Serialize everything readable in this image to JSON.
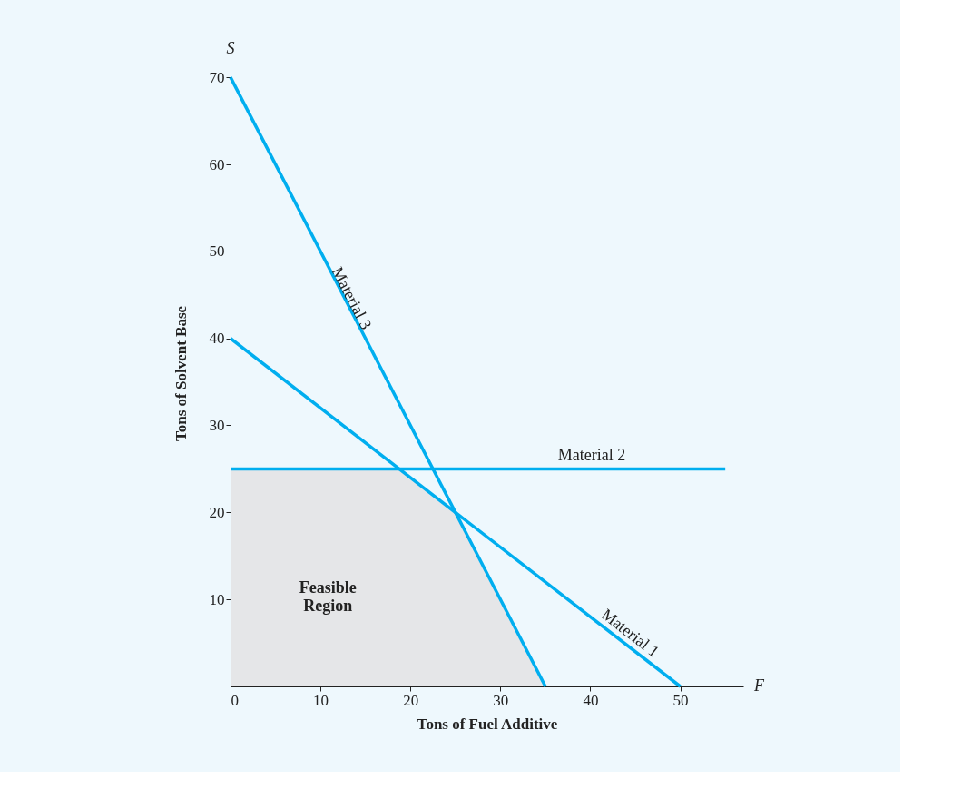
{
  "chart_data": {
    "type": "line",
    "xlabel": "Tons of Fuel Additive",
    "ylabel": "Tons of Solvent Base",
    "xlim": [
      0,
      57
    ],
    "ylim": [
      0,
      72
    ],
    "xticks": [
      0,
      10,
      20,
      30,
      40,
      50
    ],
    "yticks": [
      10,
      20,
      30,
      40,
      50,
      60,
      70
    ],
    "grid": false,
    "marker": "none",
    "line_style": "solid",
    "annotations": [
      "S",
      "F"
    ],
    "series": [
      {
        "name": "Feasible Region",
        "type": "area",
        "color": "#e5e6e8",
        "x": [
          0,
          18.75,
          25,
          35
        ],
        "values": [
          25,
          25,
          20,
          0
        ]
      },
      {
        "name": "Material 1",
        "color": "#00aeef",
        "x": [
          0,
          50
        ],
        "values": [
          40,
          0
        ]
      },
      {
        "name": "Material 2",
        "color": "#00aeef",
        "x": [
          0,
          55
        ],
        "values": [
          25,
          25
        ]
      },
      {
        "name": "Material 3",
        "color": "#00aeef",
        "x": [
          0,
          35
        ],
        "values": [
          70,
          0
        ]
      }
    ]
  }
}
